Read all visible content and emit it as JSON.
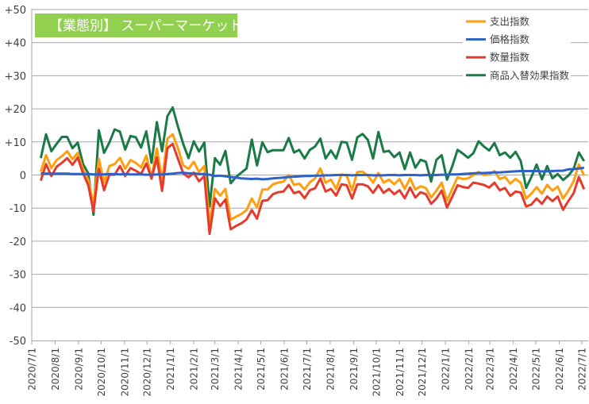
{
  "chart_data": {
    "type": "line",
    "title": "【業態別】 スーパーマーケット",
    "title_bg_color": "#92D050",
    "xlabel": "",
    "ylabel": "",
    "ylim": [
      -50,
      50
    ],
    "yticks": [
      50,
      40,
      30,
      20,
      10,
      0,
      -10,
      -20,
      -30,
      -40,
      -50
    ],
    "ytick_labels": [
      "+50",
      "+40",
      "+30",
      "+20",
      "+10",
      "0",
      "-10",
      "-20",
      "-30",
      "-40",
      "-50"
    ],
    "xlim": [
      "2020-07-01",
      "2022-07-09"
    ],
    "xtick_dates": [
      "2020-07-01",
      "2020-08-01",
      "2020-09-01",
      "2020-10-01",
      "2020-11-01",
      "2020-12-01",
      "2021-01-01",
      "2021-02-01",
      "2021-03-01",
      "2021-04-01",
      "2021-05-01",
      "2021-06-01",
      "2021-07-01",
      "2021-08-01",
      "2021-09-01",
      "2021-10-01",
      "2021-11-01",
      "2021-12-01",
      "2022-01-01",
      "2022-02-01",
      "2022-03-01",
      "2022-04-01",
      "2022-05-01",
      "2022-06-01",
      "2022-07-01"
    ],
    "xtick_labels": [
      "2020/7/1",
      "2020/8/1",
      "2020/9/1",
      "2020/10/1",
      "2020/11/1",
      "2020/12/1",
      "2021/1/1",
      "2021/2/1",
      "2021/3/1",
      "2021/4/1",
      "2021/5/1",
      "2021/6/1",
      "2021/7/1",
      "2021/8/1",
      "2021/9/1",
      "2021/10/1",
      "2021/11/1",
      "2021/12/1",
      "2022/1/1",
      "2022/2/1",
      "2022/3/1",
      "2022/4/1",
      "2022/5/1",
      "2022/6/1",
      "2022/7/1"
    ],
    "x_start": "2020-07-13",
    "x_step_days": 7,
    "grid": true,
    "legend_position": "top-right",
    "series": [
      {
        "name": "支出指数",
        "color": "#FF9F0F",
        "values": [
          1,
          6,
          2.1,
          4.5,
          5.7,
          7.2,
          4.8,
          6.7,
          1.7,
          -1.5,
          -9,
          4.9,
          -2.3,
          2.7,
          3.3,
          5.2,
          1.9,
          4.5,
          3.7,
          2.3,
          5.9,
          -0.6,
          8,
          -1.5,
          11,
          12.3,
          8.1,
          2.9,
          1.9,
          4,
          0.9,
          2.7,
          -14.5,
          -4.2,
          -6.2,
          -4.2,
          -13.5,
          -12.6,
          -11.8,
          -10.6,
          -7.1,
          -9.8,
          -4.4,
          -4.4,
          -2.8,
          -2.3,
          -2,
          0,
          -3,
          -2.6,
          -4.4,
          -2.2,
          -1,
          2,
          -2.3,
          -1.4,
          -4.2,
          0.2,
          -0.2,
          -4.6,
          0.9,
          1,
          -0.2,
          -2.3,
          0.6,
          -2.3,
          -1.4,
          -2.8,
          -1.2,
          -4.2,
          -1,
          -4.4,
          -3.4,
          -3.9,
          -6.8,
          -4.7,
          -2.3,
          -7.8,
          -4.2,
          -0.7,
          -1.2,
          -1,
          0,
          0.9,
          0,
          0.2,
          1.2,
          -1.2,
          -0.6,
          -2.6,
          -1.2,
          -2.4,
          -7.1,
          -5.6,
          -3.7,
          -5.6,
          -3,
          -4.7,
          -3.5,
          -7.1,
          -4.8,
          -1.9,
          3.2,
          -0.2
        ]
      },
      {
        "name": "価格指数",
        "color": "#2F62C6",
        "values": [
          0.5,
          0.4,
          0.4,
          0.4,
          0.4,
          0.4,
          0.3,
          0.3,
          0.3,
          0.3,
          0.2,
          0.2,
          0.2,
          0.3,
          0.3,
          0.2,
          0.3,
          0.2,
          0.2,
          0.2,
          0.1,
          0.1,
          0.2,
          0.2,
          0.3,
          0.4,
          0.6,
          0.7,
          0.5,
          0.5,
          0.3,
          0.3,
          0.1,
          -0.3,
          -0.2,
          -0.4,
          -0.6,
          -0.8,
          -1,
          -1.1,
          -1.2,
          -1.1,
          -1.3,
          -1.2,
          -1,
          -0.9,
          -0.8,
          -0.6,
          -0.5,
          -0.4,
          -0.3,
          -0.3,
          -0.2,
          -0.2,
          -0.1,
          -0.1,
          0,
          0,
          0,
          -0.1,
          0,
          0,
          0,
          -0.1,
          -0.1,
          -0.1,
          0,
          0,
          -0.1,
          0,
          0,
          0,
          -0.1,
          0,
          0,
          0,
          0.1,
          0.1,
          0.2,
          0.2,
          0.3,
          0.4,
          0.5,
          0.6,
          0.6,
          0.7,
          0.8,
          0.8,
          0.9,
          1,
          1.1,
          1.2,
          1.2,
          1.2,
          1.2,
          1.1,
          1.1,
          1.2,
          1.3,
          1.3,
          1.7,
          1.8,
          2,
          2.2
        ]
      },
      {
        "name": "数量指数",
        "color": "#E53B2C",
        "values": [
          -1.7,
          3.3,
          -0.3,
          2.5,
          3.7,
          5.1,
          3.1,
          5.3,
          0.5,
          -3.1,
          -11,
          1.9,
          -4.6,
          0.1,
          0.1,
          2.7,
          -0.3,
          2.1,
          1.3,
          0.3,
          3.5,
          -1.1,
          5.3,
          -4.8,
          8.1,
          9.4,
          4.9,
          0.5,
          -0.7,
          0.7,
          -1.9,
          -0.3,
          -17.8,
          -7,
          -9.4,
          -7.4,
          -16.4,
          -15.4,
          -14.6,
          -13.4,
          -10.6,
          -13.2,
          -7.8,
          -7.6,
          -5.8,
          -5.2,
          -5,
          -3,
          -5.5,
          -5,
          -7,
          -4.6,
          -4,
          -1,
          -5,
          -4.2,
          -6.2,
          -2.8,
          -3.1,
          -7.1,
          -2.8,
          -2.8,
          -3.4,
          -5.4,
          -3.1,
          -5.4,
          -4.2,
          -5.8,
          -4.6,
          -7,
          -3.8,
          -6.8,
          -5.2,
          -5.8,
          -8.7,
          -7.1,
          -4.7,
          -9.8,
          -6.6,
          -3.1,
          -3.6,
          -3.9,
          -2.3,
          -2.6,
          -3,
          -3.8,
          -2.3,
          -4.6,
          -3.9,
          -6.3,
          -5,
          -5.3,
          -9.5,
          -8.9,
          -7.1,
          -8.7,
          -6.5,
          -7.9,
          -6.5,
          -10.5,
          -7.9,
          -5.5,
          -0.6,
          -4.3
        ]
      },
      {
        "name": "商品入替効果指数",
        "color": "#1B7A46",
        "values": [
          5.1,
          12.3,
          7.2,
          9.4,
          11.5,
          11.5,
          8.1,
          9.8,
          3.3,
          0.5,
          -12,
          13.5,
          6.7,
          9.8,
          13.8,
          13.1,
          7.7,
          11.8,
          11.4,
          8.3,
          13.2,
          3.7,
          16,
          7.2,
          17.8,
          20.4,
          14.6,
          9.4,
          5.1,
          10.2,
          7.1,
          9.8,
          -9.5,
          5.1,
          3.1,
          7.3,
          -2.5,
          -0.6,
          0.7,
          2,
          10.7,
          2.9,
          9.9,
          6.9,
          7.5,
          7.5,
          7.5,
          11.2,
          6.8,
          7.6,
          5,
          7.6,
          8.6,
          11,
          5,
          7.4,
          5,
          10,
          9.8,
          4.6,
          11.4,
          12.4,
          10.6,
          5,
          13,
          7,
          7.3,
          5.4,
          6.8,
          1.8,
          6.8,
          2.2,
          4.6,
          4,
          -2,
          4.6,
          6,
          -1.4,
          2.6,
          7.6,
          6.5,
          5.2,
          6.6,
          10.2,
          8.6,
          7.4,
          9.7,
          6,
          6.8,
          5.2,
          7,
          4.2,
          -3.9,
          -0.6,
          3.2,
          -1.3,
          2.7,
          -1,
          0.3,
          -1.5,
          -0.2,
          1.8,
          6.8,
          4.2
        ]
      }
    ]
  }
}
